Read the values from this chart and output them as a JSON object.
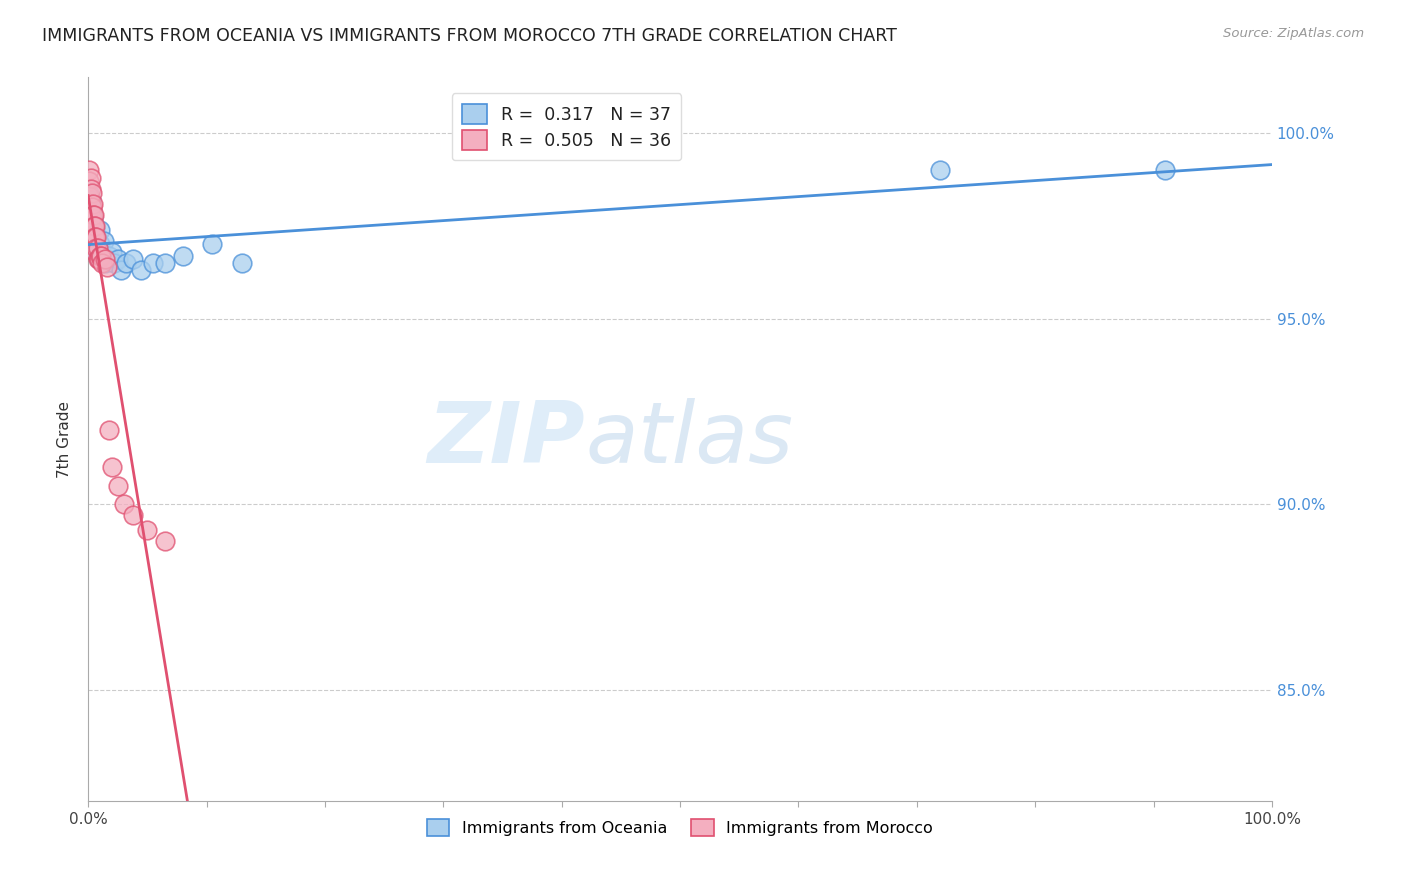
{
  "title": "IMMIGRANTS FROM OCEANIA VS IMMIGRANTS FROM MOROCCO 7TH GRADE CORRELATION CHART",
  "source": "Source: ZipAtlas.com",
  "ylabel": "7th Grade",
  "xlim": [
    0.0,
    1.0
  ],
  "ylim": [
    0.82,
    1.015
  ],
  "yticks": [
    0.85,
    0.9,
    0.95,
    1.0
  ],
  "ytick_labels": [
    "85.0%",
    "90.0%",
    "95.0%",
    "100.0%"
  ],
  "xtick_positions": [
    0.0,
    0.1,
    0.2,
    0.3,
    0.4,
    0.5,
    0.6,
    0.7,
    0.8,
    0.9,
    1.0
  ],
  "xtick_labels": [
    "0.0%",
    "",
    "",
    "",
    "",
    "",
    "",
    "",
    "",
    "",
    "100.0%"
  ],
  "legend_r_oceania": "0.317",
  "legend_n_oceania": "37",
  "legend_r_morocco": "0.505",
  "legend_n_morocco": "36",
  "oceania_color": "#aacfee",
  "morocco_color": "#f4afc0",
  "trendline_oceania_color": "#4a90d9",
  "trendline_morocco_color": "#e05070",
  "watermark_zip": "ZIP",
  "watermark_atlas": "atlas",
  "oceania_x": [
    0.001,
    0.001,
    0.002,
    0.002,
    0.003,
    0.003,
    0.004,
    0.004,
    0.005,
    0.005,
    0.006,
    0.006,
    0.007,
    0.007,
    0.008,
    0.009,
    0.01,
    0.01,
    0.012,
    0.013,
    0.014,
    0.016,
    0.018,
    0.02,
    0.022,
    0.025,
    0.028,
    0.032,
    0.038,
    0.045,
    0.055,
    0.065,
    0.08,
    0.105,
    0.13,
    0.72,
    0.91
  ],
  "oceania_y": [
    0.981,
    0.984,
    0.978,
    0.982,
    0.975,
    0.979,
    0.973,
    0.977,
    0.971,
    0.975,
    0.97,
    0.974,
    0.968,
    0.972,
    0.968,
    0.966,
    0.97,
    0.974,
    0.967,
    0.971,
    0.965,
    0.966,
    0.967,
    0.968,
    0.965,
    0.966,
    0.963,
    0.965,
    0.966,
    0.963,
    0.965,
    0.965,
    0.967,
    0.97,
    0.965,
    0.99,
    0.99
  ],
  "morocco_x": [
    0.001,
    0.001,
    0.001,
    0.001,
    0.002,
    0.002,
    0.002,
    0.003,
    0.003,
    0.003,
    0.004,
    0.004,
    0.004,
    0.005,
    0.005,
    0.005,
    0.006,
    0.006,
    0.006,
    0.007,
    0.007,
    0.008,
    0.008,
    0.009,
    0.01,
    0.011,
    0.012,
    0.014,
    0.016,
    0.018,
    0.02,
    0.025,
    0.03,
    0.038,
    0.05,
    0.065
  ],
  "morocco_y": [
    0.99,
    0.987,
    0.983,
    0.979,
    0.988,
    0.985,
    0.981,
    0.984,
    0.98,
    0.977,
    0.981,
    0.978,
    0.974,
    0.978,
    0.975,
    0.972,
    0.975,
    0.972,
    0.968,
    0.972,
    0.969,
    0.969,
    0.966,
    0.966,
    0.967,
    0.967,
    0.965,
    0.966,
    0.964,
    0.92,
    0.91,
    0.905,
    0.9,
    0.897,
    0.893,
    0.89
  ]
}
